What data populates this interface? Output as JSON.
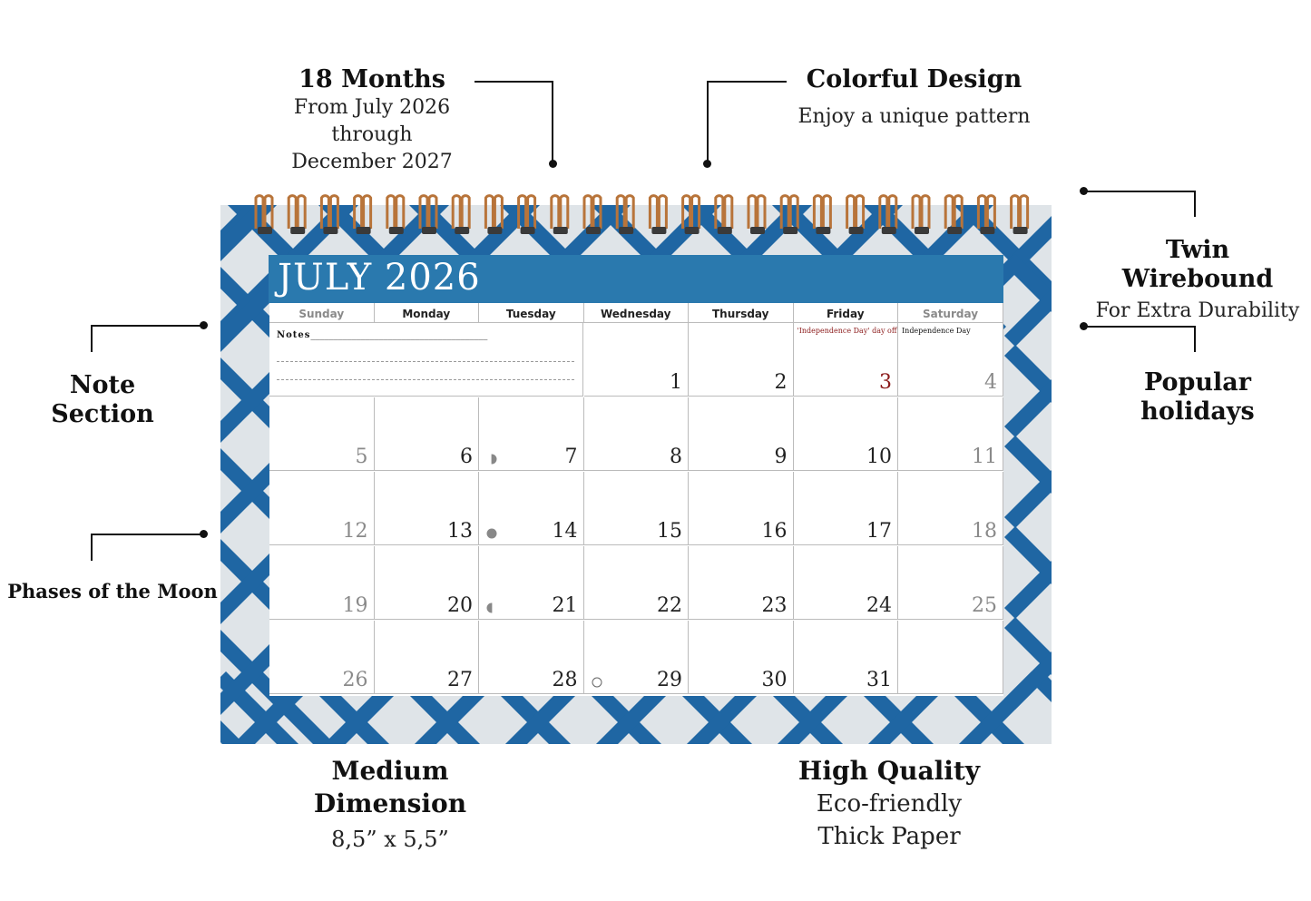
{
  "callouts": {
    "months": {
      "heading": "18 Months",
      "lines": [
        "From July 2026",
        "through",
        "December 2027"
      ]
    },
    "colorful": {
      "heading": "Colorful Design",
      "sub": "Enjoy a unique pattern"
    },
    "wirebound": {
      "heading": "Twin Wirebound",
      "sub": "For Extra Durability"
    },
    "note_section": {
      "heading": "Note Section"
    },
    "holidays": {
      "heading": "Popular holidays"
    },
    "moon": {
      "heading": "Phases of the Moon"
    },
    "dimension": {
      "heading_line1": "Medium",
      "heading_line2": "Dimension",
      "sub": "8,5” x 5,5”"
    },
    "quality": {
      "heading": "High Quality",
      "lines": [
        "Eco-friendly",
        "Thick Paper"
      ]
    }
  },
  "calendar": {
    "title": "JULY 2026",
    "days": [
      "Sunday",
      "Monday",
      "Tuesday",
      "Wednesday",
      "Thursday",
      "Friday",
      "Saturday"
    ],
    "notes_label": "Notes",
    "notes_underline": "_______________________________________",
    "holiday_notes": {
      "friday_3": "'Independence Day' day off",
      "saturday_4": "Independence Day"
    },
    "first_week": [
      "1",
      "2",
      "3",
      "4"
    ],
    "weeks": [
      [
        "5",
        "6",
        "7",
        "8",
        "9",
        "10",
        "11"
      ],
      [
        "12",
        "13",
        "14",
        "15",
        "16",
        "17",
        "18"
      ],
      [
        "19",
        "20",
        "21",
        "22",
        "23",
        "24",
        "25"
      ],
      [
        "26",
        "27",
        "28",
        "29",
        "30",
        "31",
        ""
      ]
    ],
    "moon_phases": [
      {
        "phase": "first-quarter",
        "day": "7"
      },
      {
        "phase": "full-moon",
        "day": "14"
      },
      {
        "phase": "last-quarter",
        "day": "21"
      },
      {
        "phase": "new-moon",
        "day": "29"
      }
    ]
  },
  "colors": {
    "pattern_blue": "#1f66a3",
    "pattern_bg": "#dfe4e8",
    "banner": "#2a79ae",
    "ring": "#b8743a",
    "holiday_red": "#8b1a1a"
  }
}
